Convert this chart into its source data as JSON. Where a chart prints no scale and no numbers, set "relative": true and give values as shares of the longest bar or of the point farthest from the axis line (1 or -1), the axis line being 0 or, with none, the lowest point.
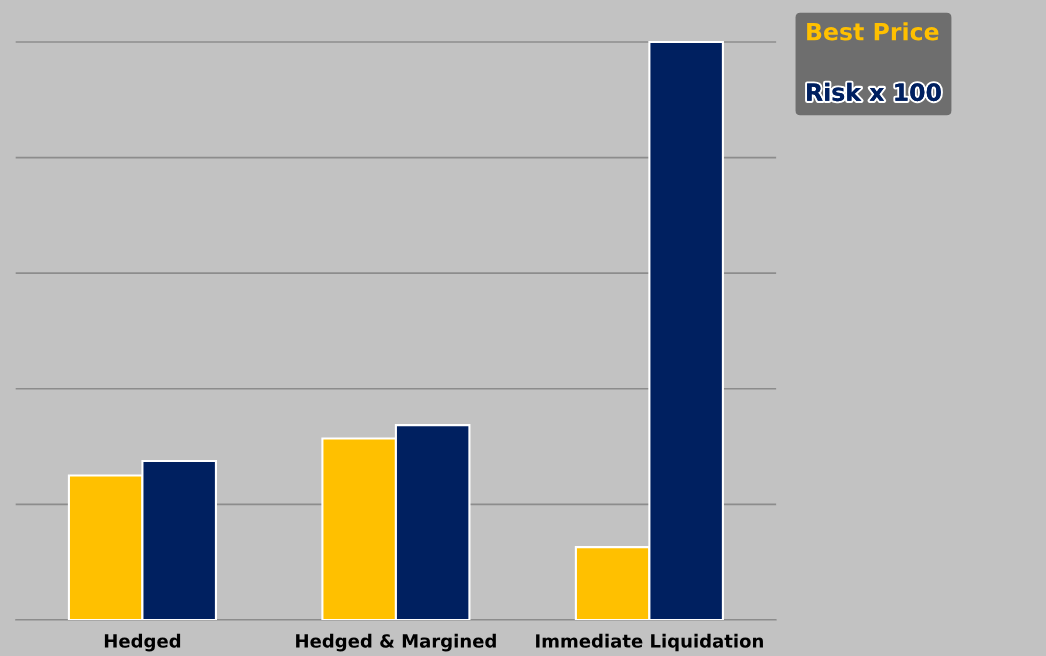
{
  "chart_data": {
    "type": "bar",
    "relative": true,
    "grid": "y",
    "legend": "top right",
    "tick_labels": "x",
    "categories": [
      "Hedged",
      "Hedged & Margined",
      "Immediate Liquidation"
    ],
    "series": [
      {
        "name": "Best Price",
        "color": "#ffc000",
        "values": [
          0.25,
          0.314,
          0.126
        ]
      },
      {
        "name": "Risk x 100",
        "color": "#002060",
        "values": [
          0.275,
          0.337,
          1
        ]
      }
    ]
  }
}
